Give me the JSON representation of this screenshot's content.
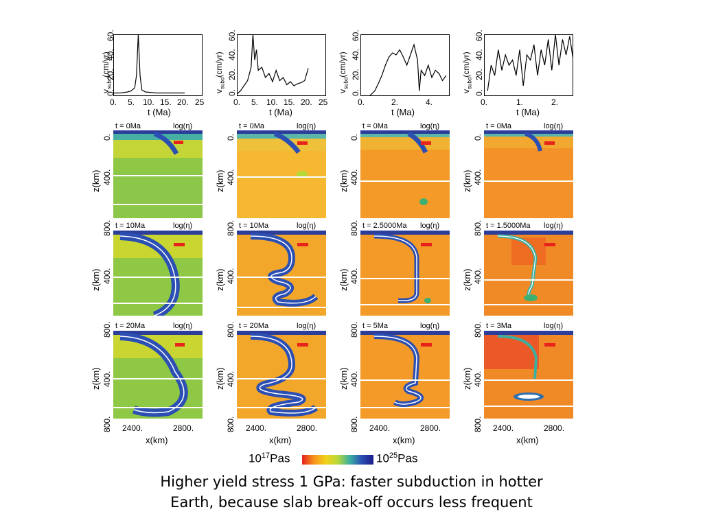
{
  "columns": [
    {
      "timeseries": {
        "ylabel_base": "v",
        "ylabel_sub": "subd",
        "ylabel_rest": "(cm/yr)",
        "yticks": [
          "0.",
          "20.",
          "40.",
          "60."
        ],
        "xticks": [
          "0.",
          "5.",
          "10.",
          "15.",
          "20.",
          "25"
        ],
        "xlabel": "t (Ma)"
      },
      "panels": [
        {
          "time": "t = 0Ma",
          "log": "log(η)"
        },
        {
          "time": "t = 10Ma",
          "log": "log(η)"
        },
        {
          "time": "t = 20Ma",
          "log": "log(η)"
        }
      ],
      "zticks": [
        "0.",
        "400.",
        "800."
      ],
      "zlabel": "z(km)",
      "xticks": [
        "2400.",
        "2800."
      ],
      "xlabel": "x(km)"
    },
    {
      "timeseries": {
        "ylabel_base": "v",
        "ylabel_sub": "subd",
        "ylabel_rest": "(cm/yr)",
        "yticks": [
          "0.",
          "20.",
          "40.",
          "60."
        ],
        "xticks": [
          "0.",
          "5.",
          "10.",
          "15.",
          "20.",
          "25"
        ],
        "xlabel": "t (Ma)"
      },
      "panels": [
        {
          "time": "t = 0Ma",
          "log": "log(η)"
        },
        {
          "time": "t = 10Ma",
          "log": "log(η)"
        },
        {
          "time": "t = 20Ma",
          "log": "log(η)"
        }
      ],
      "zticks": [
        "0.",
        "400.",
        "800."
      ],
      "zlabel": "z(km)",
      "xticks": [
        "2400.",
        "2800."
      ],
      "xlabel": "x(km)"
    },
    {
      "timeseries": {
        "ylabel_base": "v",
        "ylabel_sub": "subd",
        "ylabel_rest": "(cm/yr)",
        "yticks": [
          "0.",
          "20.",
          "40.",
          "60."
        ],
        "xticks": [
          "0.",
          "2.",
          "4."
        ],
        "xlabel": "t (Ma)"
      },
      "panels": [
        {
          "time": "t = 0Ma",
          "log": "log(η)"
        },
        {
          "time": "t = 2.5000Ma",
          "log": "log(η)"
        },
        {
          "time": "t = 5Ma",
          "log": "log(η)"
        }
      ],
      "zticks": [
        "0.",
        "400.",
        "800."
      ],
      "zlabel": "z(km)",
      "xticks": [
        "2400.",
        "2800."
      ],
      "xlabel": "x(km)"
    },
    {
      "timeseries": {
        "ylabel_base": "v",
        "ylabel_sub": "subd",
        "ylabel_rest": "(cm/yr)",
        "yticks": [
          "0.",
          "20.",
          "40.",
          "60."
        ],
        "xticks": [
          "0.",
          "1.",
          "2."
        ],
        "xlabel": "t (Ma)"
      },
      "panels": [
        {
          "time": "t = 0Ma",
          "log": "log(η)"
        },
        {
          "time": "t = 1.5000Ma",
          "log": "log(η)"
        },
        {
          "time": "t = 3Ma",
          "log": "log(η)"
        }
      ],
      "zticks": [
        "0.",
        "400.",
        "800."
      ],
      "zlabel": "z(km)",
      "xticks": [
        "2400.",
        "2800."
      ],
      "xlabel": "x(km)"
    }
  ],
  "colorbar": {
    "min_base": "10",
    "min_exp": "17",
    "min_unit": "Pas",
    "max_base": "10",
    "max_exp": "25",
    "max_unit": "Pas",
    "colors": [
      "#e8231b",
      "#f7941d",
      "#f2d21a",
      "#b8d83a",
      "#3bb0a0",
      "#2b4fb3",
      "#1c1c8a"
    ]
  },
  "caption": {
    "line1": "Higher yield stress 1 GPa: faster subduction in hotter",
    "line2": "Earth, because slab break-off occurs less frequent"
  },
  "chart_data": [
    {
      "type": "line",
      "xlabel": "t (Ma)",
      "ylabel": "v_subd(cm/yr)",
      "xlim": [
        0,
        25
      ],
      "ylim": [
        0,
        60
      ],
      "x": [
        0,
        2,
        4,
        5,
        6,
        6.5,
        7,
        7.5,
        8,
        9,
        12,
        15,
        18,
        20
      ],
      "y": [
        3,
        3,
        4,
        5,
        8,
        20,
        60,
        20,
        6,
        4,
        3,
        3,
        3,
        3
      ]
    },
    {
      "type": "line",
      "xlabel": "t (Ma)",
      "ylabel": "v_subd(cm/yr)",
      "xlim": [
        0,
        25
      ],
      "ylim": [
        0,
        60
      ],
      "x": [
        0,
        1,
        2,
        3,
        4,
        4.5,
        5,
        5.5,
        6,
        7,
        8,
        9,
        10,
        11,
        12,
        13,
        14,
        15,
        16,
        17,
        18,
        19,
        20
      ],
      "y": [
        2,
        5,
        10,
        15,
        28,
        60,
        35,
        45,
        25,
        28,
        18,
        22,
        14,
        25,
        15,
        18,
        11,
        14,
        10,
        12,
        13,
        15,
        27
      ]
    },
    {
      "type": "line",
      "xlabel": "t (Ma)",
      "ylabel": "v_subd(cm/yr)",
      "xlim": [
        0,
        5
      ],
      "ylim": [
        0,
        60
      ],
      "x": [
        0.5,
        0.8,
        1.0,
        1.2,
        1.4,
        1.6,
        1.8,
        2.0,
        2.2,
        2.4,
        2.6,
        2.8,
        3.0,
        3.2,
        3.3,
        3.4,
        3.6,
        3.8,
        4.0,
        4.2,
        4.4,
        4.6,
        4.8
      ],
      "y": [
        0,
        5,
        12,
        20,
        30,
        38,
        42,
        40,
        45,
        38,
        30,
        40,
        50,
        35,
        5,
        25,
        20,
        30,
        18,
        25,
        22,
        15,
        20
      ]
    },
    {
      "type": "line",
      "xlabel": "t (Ma)",
      "ylabel": "v_subd(cm/yr)",
      "xlim": [
        0,
        2.5
      ],
      "ylim": [
        0,
        60
      ],
      "x": [
        0.1,
        0.2,
        0.3,
        0.4,
        0.5,
        0.6,
        0.7,
        0.8,
        0.9,
        1.0,
        1.1,
        1.2,
        1.3,
        1.4,
        1.5,
        1.6,
        1.7,
        1.8,
        1.9,
        2.0,
        2.1,
        2.2,
        2.3,
        2.4,
        2.5
      ],
      "y": [
        5,
        30,
        20,
        45,
        25,
        40,
        30,
        35,
        20,
        45,
        10,
        40,
        35,
        50,
        20,
        45,
        30,
        55,
        25,
        60,
        30,
        55,
        40,
        58,
        35
      ]
    }
  ]
}
